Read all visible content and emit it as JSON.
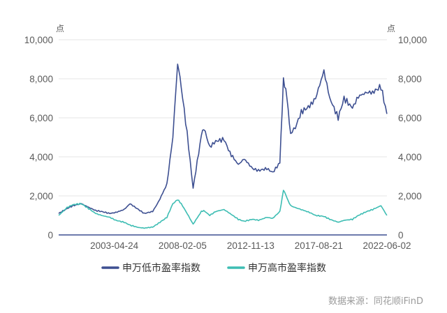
{
  "chart_data": {
    "type": "line",
    "y_unit_label": "点",
    "ylim": [
      0,
      10000
    ],
    "y_ticks": [
      "0",
      "2,000",
      "4,000",
      "6,000",
      "8,000",
      "10,000"
    ],
    "y_tick_values": [
      0,
      2000,
      4000,
      6000,
      8000,
      10000
    ],
    "x_range": [
      "1999-06-01",
      "2022-06-02"
    ],
    "x_ticks": [
      "2003-04-24",
      "2008-02-05",
      "2012-11-13",
      "2017-08-21",
      "2022-06-02"
    ],
    "grid": true,
    "legend_position": "bottom",
    "source": "数据来源：同花顺iFinD",
    "x": [
      "1999-06",
      "2000-01",
      "2000-06",
      "2001-01",
      "2001-06",
      "2002-01",
      "2002-06",
      "2003-01",
      "2003-06",
      "2004-01",
      "2004-06",
      "2005-01",
      "2005-06",
      "2006-01",
      "2006-06",
      "2007-01",
      "2007-06",
      "2007-10",
      "2008-01",
      "2008-06",
      "2008-11",
      "2009-06",
      "2009-08",
      "2010-01",
      "2010-06",
      "2011-01",
      "2011-06",
      "2012-01",
      "2012-06",
      "2013-01",
      "2013-06",
      "2014-01",
      "2014-06",
      "2014-12",
      "2015-03",
      "2015-06",
      "2015-09",
      "2016-01",
      "2016-06",
      "2017-01",
      "2017-06",
      "2018-01",
      "2018-06",
      "2019-01",
      "2019-06",
      "2020-01",
      "2020-06",
      "2021-01",
      "2021-06",
      "2022-01",
      "2022-06"
    ],
    "series": [
      {
        "name": "申万低市盈率指数",
        "color": "#3d4f91",
        "values": [
          1100,
          1350,
          1500,
          1600,
          1450,
          1250,
          1200,
          1100,
          1150,
          1300,
          1600,
          1300,
          1100,
          1200,
          1700,
          2600,
          5000,
          8800,
          7600,
          5200,
          2400,
          5100,
          5500,
          4500,
          4800,
          4900,
          4200,
          3600,
          3900,
          3400,
          3300,
          3400,
          3200,
          3700,
          8000,
          7000,
          5200,
          5500,
          6300,
          6600,
          7000,
          8400,
          7000,
          6000,
          7000,
          6500,
          7100,
          7300,
          7300,
          7600,
          6200
        ]
      },
      {
        "name": "申万高市盈率指数",
        "color": "#3dbdb3",
        "values": [
          1000,
          1400,
          1550,
          1600,
          1400,
          1100,
          1000,
          900,
          750,
          650,
          500,
          380,
          350,
          400,
          600,
          900,
          1600,
          1800,
          1600,
          1100,
          550,
          1200,
          1250,
          1000,
          1200,
          1300,
          1100,
          800,
          700,
          800,
          750,
          900,
          850,
          1200,
          2300,
          1900,
          1500,
          1400,
          1300,
          1150,
          1000,
          950,
          800,
          650,
          750,
          800,
          1000,
          1200,
          1300,
          1500,
          1000
        ]
      }
    ]
  }
}
